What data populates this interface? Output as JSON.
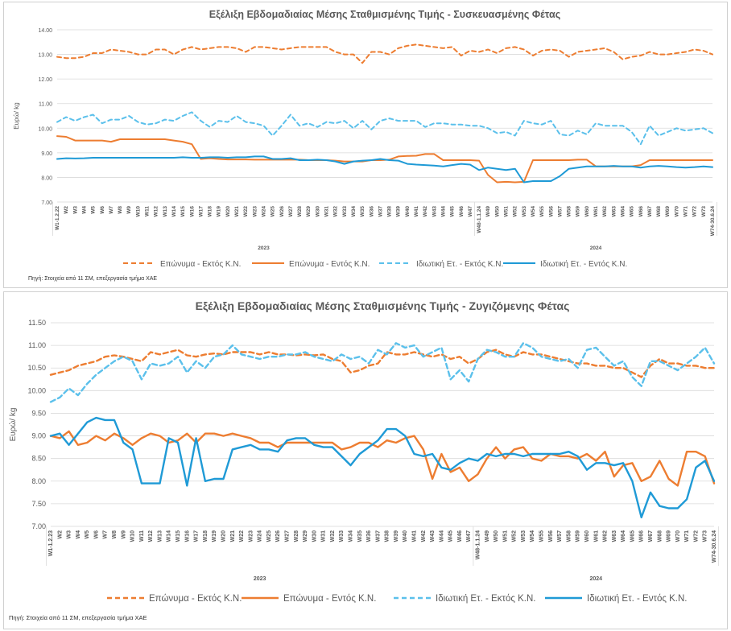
{
  "chart_data": [
    {
      "type": "line",
      "title": "Εξέλιξη Εβδομαδιαίας Μέσης Σταθμισμένης Τιμής - Συσκευασμένης Φέτας",
      "xlabel": "",
      "ylabel": "Ευρώ/ kg",
      "ylim": [
        7.0,
        14.0
      ],
      "yticks": [
        "14.00",
        "13.00",
        "12.00",
        "11.00",
        "10.00",
        "9.00",
        "8.00",
        "7.00"
      ],
      "grid": "horizontal",
      "legend_position": "bottom",
      "source": "Πηγή: Στοιχεία από 11 ΣΜ, επεξεργασία τμήμα ΧΑΕ",
      "categories": [
        "W1-1.2.22",
        "W2",
        "W3",
        "W4",
        "W5",
        "W6",
        "W7",
        "W8",
        "W9",
        "W10",
        "W11",
        "W12",
        "W13",
        "W14",
        "W15",
        "W16",
        "W17",
        "W18",
        "W19",
        "W20",
        "W21",
        "W22",
        "W23",
        "W24",
        "W25",
        "W26",
        "W27",
        "W28",
        "W29",
        "W30",
        "W31",
        "W32",
        "W33",
        "W34",
        "W35",
        "W36",
        "W37",
        "W38",
        "W39",
        "W40",
        "W41",
        "W42",
        "W43",
        "W44",
        "W45",
        "W46",
        "W47",
        "W48-1.1.24",
        "W49",
        "W50",
        "W51",
        "W52",
        "W53",
        "W54",
        "W55",
        "W56",
        "W57",
        "W58",
        "W59",
        "W60",
        "W61",
        "W62",
        "W63",
        "W64",
        "W65",
        "W66",
        "W67",
        "W68",
        "W69",
        "W70",
        "W71",
        "W72",
        "W73",
        "W74-30.6.24"
      ],
      "group_labels": [
        {
          "label": "2023",
          "from": 0,
          "to": 46
        },
        {
          "label": "2024",
          "from": 47,
          "to": 73
        }
      ],
      "series": [
        {
          "name": "Επώνυμα - Εκτός Κ.Ν.",
          "color": "#ed7d31",
          "dash": true,
          "values": [
            12.9,
            12.85,
            12.85,
            12.9,
            13.05,
            13.05,
            13.2,
            13.15,
            13.1,
            13.0,
            13.0,
            13.2,
            13.2,
            13.0,
            13.2,
            13.3,
            13.2,
            13.25,
            13.3,
            13.3,
            13.25,
            13.1,
            13.3,
            13.3,
            13.25,
            13.2,
            13.25,
            13.3,
            13.3,
            13.3,
            13.3,
            13.1,
            13.0,
            13.0,
            12.65,
            13.1,
            13.1,
            13.0,
            13.25,
            13.35,
            13.4,
            13.35,
            13.3,
            13.25,
            13.3,
            12.95,
            13.15,
            13.1,
            13.2,
            13.05,
            13.25,
            13.3,
            13.2,
            12.95,
            13.15,
            13.2,
            13.15,
            12.9,
            13.1,
            13.15,
            13.2,
            13.25,
            13.1,
            12.8,
            12.9,
            12.95,
            13.1,
            13.0,
            13.0,
            13.05,
            13.1,
            13.2,
            13.15,
            13.0
          ]
        },
        {
          "name": "Επώνυμα - Εντός Κ.Ν.",
          "color": "#ed7d31",
          "dash": false,
          "values": [
            9.68,
            9.65,
            9.5,
            9.5,
            9.5,
            9.5,
            9.45,
            9.55,
            9.55,
            9.55,
            9.55,
            9.55,
            9.55,
            9.5,
            9.45,
            9.35,
            8.75,
            8.78,
            8.75,
            8.73,
            8.73,
            8.73,
            8.72,
            8.72,
            8.72,
            8.72,
            8.72,
            8.72,
            8.7,
            8.7,
            8.7,
            8.68,
            8.65,
            8.65,
            8.65,
            8.7,
            8.7,
            8.72,
            8.85,
            8.87,
            8.88,
            8.95,
            8.95,
            8.7,
            8.7,
            8.7,
            8.7,
            8.68,
            8.1,
            7.8,
            7.82,
            7.8,
            7.82,
            8.7,
            8.7,
            8.7,
            8.7,
            8.7,
            8.72,
            8.72,
            8.45,
            8.45,
            8.45,
            8.45,
            8.45,
            8.5,
            8.7,
            8.7,
            8.7,
            8.7,
            8.7,
            8.7,
            8.7,
            8.7
          ]
        },
        {
          "name": "Ιδιωτική Ετ. - Εκτός Κ.Ν.",
          "color": "#5bc0eb",
          "dash": true,
          "values": [
            10.25,
            10.45,
            10.3,
            10.45,
            10.55,
            10.2,
            10.35,
            10.35,
            10.5,
            10.25,
            10.15,
            10.2,
            10.35,
            10.3,
            10.5,
            10.65,
            10.3,
            10.05,
            10.3,
            10.25,
            10.5,
            10.25,
            10.2,
            10.1,
            9.7,
            10.1,
            10.55,
            10.1,
            10.2,
            10.05,
            10.25,
            10.2,
            10.3,
            10.0,
            10.3,
            9.95,
            10.3,
            10.4,
            10.3,
            10.3,
            10.3,
            10.05,
            10.2,
            10.2,
            10.15,
            10.15,
            10.1,
            10.1,
            10.0,
            9.8,
            9.85,
            9.7,
            10.3,
            10.2,
            10.15,
            10.3,
            9.75,
            9.7,
            9.9,
            9.75,
            10.2,
            10.1,
            10.1,
            10.1,
            9.85,
            9.35,
            10.1,
            9.7,
            9.85,
            10.0,
            9.9,
            9.95,
            10.0,
            9.8
          ]
        },
        {
          "name": "Ιδιωτική Ετ. - Εντός Κ.Ν.",
          "color": "#1f9ad6",
          "dash": false,
          "values": [
            8.75,
            8.78,
            8.77,
            8.78,
            8.8,
            8.8,
            8.8,
            8.8,
            8.8,
            8.8,
            8.8,
            8.8,
            8.8,
            8.8,
            8.82,
            8.8,
            8.8,
            8.82,
            8.82,
            8.8,
            8.82,
            8.82,
            8.85,
            8.85,
            8.75,
            8.75,
            8.78,
            8.7,
            8.7,
            8.72,
            8.7,
            8.65,
            8.55,
            8.65,
            8.68,
            8.7,
            8.75,
            8.7,
            8.68,
            8.55,
            8.52,
            8.5,
            8.48,
            8.45,
            8.5,
            8.55,
            8.52,
            8.3,
            8.4,
            8.35,
            8.3,
            8.35,
            7.8,
            7.85,
            7.85,
            7.85,
            8.05,
            8.35,
            8.4,
            8.45,
            8.45,
            8.45,
            8.47,
            8.45,
            8.45,
            8.4,
            8.45,
            8.47,
            8.45,
            8.42,
            8.4,
            8.42,
            8.45,
            8.42
          ]
        }
      ]
    },
    {
      "type": "line",
      "title": "Εξέλιξη Εβδομαδιαίας Μέσης Σταθμισμένης Τιμής - Ζυγιζόμενης Φέτας",
      "xlabel": "",
      "ylabel": "Ευρώ/ kg",
      "ylim": [
        7.0,
        11.5
      ],
      "yticks": [
        "11.50",
        "11.00",
        "10.50",
        "10.00",
        "9.50",
        "9.00",
        "8.50",
        "8.00",
        "7.50",
        "7.00"
      ],
      "grid": "horizontal",
      "legend_position": "bottom",
      "source": "Πηγή: Στοιχεία από 11 ΣΜ, επεξεργασία τμήμα ΧΑΕ",
      "categories": [
        "W1-1.2.23",
        "W2",
        "W3",
        "W4",
        "W5",
        "W6",
        "W7",
        "W8",
        "W9",
        "W10",
        "W11",
        "W12",
        "W13",
        "W14",
        "W15",
        "W16",
        "W17",
        "W18",
        "W19",
        "W20",
        "W21",
        "W22",
        "W23",
        "W24",
        "W25",
        "W26",
        "W27",
        "W28",
        "W29",
        "W30",
        "W31",
        "W32",
        "W33",
        "W34",
        "W35",
        "W36",
        "W37",
        "W38",
        "W39",
        "W40",
        "W41",
        "W42",
        "W43",
        "W44",
        "W45",
        "W46",
        "W47",
        "W48-1.1.24",
        "W49",
        "W50",
        "W51",
        "W52",
        "W53",
        "W54",
        "W55",
        "W56",
        "W57",
        "W58",
        "W59",
        "W60",
        "W61",
        "W62",
        "W63",
        "W64",
        "W65",
        "W66",
        "W67",
        "W68",
        "W69",
        "W70",
        "W71",
        "W72",
        "W73",
        "W74-30.6.24"
      ],
      "group_labels": [
        {
          "label": "2023",
          "from": 0,
          "to": 46
        },
        {
          "label": "2024",
          "from": 47,
          "to": 73
        }
      ],
      "series": [
        {
          "name": "Επώνυμα - Εκτός Κ.Ν.",
          "color": "#ed7d31",
          "dash": true,
          "values": [
            10.35,
            10.4,
            10.45,
            10.55,
            10.6,
            10.65,
            10.75,
            10.78,
            10.75,
            10.7,
            10.65,
            10.85,
            10.8,
            10.85,
            10.9,
            10.78,
            10.75,
            10.8,
            10.82,
            10.8,
            10.85,
            10.85,
            10.85,
            10.8,
            10.85,
            10.8,
            10.8,
            10.78,
            10.8,
            10.78,
            10.8,
            10.7,
            10.65,
            10.4,
            10.45,
            10.55,
            10.6,
            10.85,
            10.8,
            10.8,
            10.85,
            10.8,
            10.75,
            10.8,
            10.7,
            10.75,
            10.6,
            10.7,
            10.85,
            10.9,
            10.8,
            10.75,
            10.85,
            10.8,
            10.8,
            10.75,
            10.7,
            10.65,
            10.6,
            10.6,
            10.55,
            10.55,
            10.5,
            10.5,
            10.4,
            10.3,
            10.55,
            10.7,
            10.6,
            10.6,
            10.55,
            10.55,
            10.5,
            10.5
          ]
        },
        {
          "name": "Επώνυμα - Εντός Κ.Ν.",
          "color": "#ed7d31",
          "dash": false,
          "values": [
            9.0,
            8.95,
            9.1,
            8.8,
            8.85,
            9.0,
            8.9,
            9.05,
            8.95,
            8.8,
            8.95,
            9.05,
            9.0,
            8.85,
            8.9,
            9.05,
            8.85,
            9.05,
            9.05,
            9.0,
            9.05,
            9.0,
            8.95,
            8.85,
            8.85,
            8.75,
            8.85,
            8.85,
            8.85,
            8.85,
            8.85,
            8.85,
            8.7,
            8.75,
            8.85,
            8.85,
            8.75,
            8.9,
            8.85,
            8.95,
            9.0,
            8.7,
            8.05,
            8.6,
            8.2,
            8.3,
            8.0,
            8.15,
            8.5,
            8.75,
            8.5,
            8.7,
            8.75,
            8.5,
            8.45,
            8.6,
            8.55,
            8.55,
            8.5,
            8.6,
            8.45,
            8.65,
            8.1,
            8.35,
            8.4,
            8.0,
            8.1,
            8.45,
            8.05,
            7.9,
            8.65,
            8.65,
            8.55,
            7.95
          ]
        },
        {
          "name": "Ιδιωτική Ετ. - Εκτός Κ.Ν.",
          "color": "#5bc0eb",
          "dash": true,
          "values": [
            9.75,
            9.85,
            10.05,
            9.9,
            10.15,
            10.35,
            10.5,
            10.65,
            10.75,
            10.65,
            10.25,
            10.6,
            10.55,
            10.6,
            10.75,
            10.4,
            10.65,
            10.5,
            10.75,
            10.8,
            11.0,
            10.8,
            10.75,
            10.7,
            10.75,
            10.75,
            10.8,
            10.8,
            10.85,
            10.75,
            10.7,
            10.65,
            10.8,
            10.7,
            10.75,
            10.6,
            10.9,
            10.8,
            11.05,
            10.95,
            11.0,
            10.75,
            10.85,
            10.95,
            10.25,
            10.45,
            10.2,
            10.7,
            10.9,
            10.85,
            10.75,
            10.75,
            11.05,
            10.95,
            10.75,
            10.7,
            10.65,
            10.7,
            10.5,
            10.9,
            10.95,
            10.75,
            10.55,
            10.65,
            10.3,
            10.1,
            10.65,
            10.65,
            10.55,
            10.45,
            10.6,
            10.75,
            10.95,
            10.6
          ]
        },
        {
          "name": "Ιδιωτική Ετ. - Εντός Κ.Ν.",
          "color": "#1f9ad6",
          "dash": false,
          "values": [
            9.0,
            9.05,
            8.8,
            9.05,
            9.3,
            9.4,
            9.35,
            9.35,
            8.85,
            8.7,
            7.95,
            7.95,
            7.95,
            8.95,
            8.85,
            7.9,
            8.95,
            8.0,
            8.05,
            8.05,
            8.7,
            8.75,
            8.8,
            8.7,
            8.7,
            8.65,
            8.9,
            8.95,
            8.95,
            8.8,
            8.75,
            8.75,
            8.55,
            8.35,
            8.6,
            8.75,
            8.9,
            9.15,
            9.15,
            9.0,
            8.6,
            8.55,
            8.6,
            8.3,
            8.25,
            8.4,
            8.5,
            8.45,
            8.6,
            8.55,
            8.6,
            8.6,
            8.55,
            8.6,
            8.6,
            8.6,
            8.6,
            8.65,
            8.55,
            8.25,
            8.4,
            8.4,
            8.35,
            8.4,
            8.0,
            7.2,
            7.75,
            7.45,
            7.4,
            7.4,
            7.6,
            8.3,
            8.45,
            8.0
          ]
        }
      ]
    }
  ]
}
